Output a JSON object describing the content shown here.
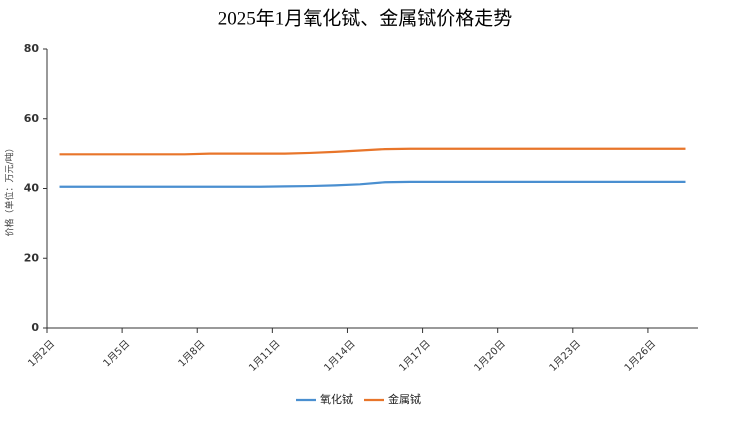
{
  "chart_data": {
    "type": "line",
    "title": "2025年1月氧化铽、金属铽价格走势",
    "y_label": "价格（单位：万元/吨）",
    "categories": [
      "1月2日",
      null,
      null,
      "1月5日",
      null,
      null,
      "1月8日",
      null,
      null,
      "1月11日",
      null,
      null,
      "1月14日",
      null,
      null,
      "1月17日",
      null,
      null,
      "1月20日",
      null,
      null,
      "1月23日",
      null,
      null,
      "1月26日",
      null
    ],
    "series": [
      {
        "name": "氧化铽",
        "color": "#4a8fd0",
        "values": [
          40.5,
          40.5,
          40.5,
          40.5,
          40.5,
          40.5,
          40.5,
          40.5,
          40.5,
          40.6,
          40.7,
          40.9,
          41.2,
          41.8,
          41.9,
          41.9,
          41.9,
          41.9,
          41.9,
          41.9,
          41.9,
          41.9,
          41.9,
          41.9,
          41.9,
          41.9
        ]
      },
      {
        "name": "金属铽",
        "color": "#e8752a",
        "values": [
          49.8,
          49.8,
          49.8,
          49.8,
          49.8,
          49.8,
          50,
          50,
          50,
          50,
          50.2,
          50.5,
          50.9,
          51.3,
          51.4,
          51.4,
          51.4,
          51.4,
          51.4,
          51.4,
          51.4,
          51.4,
          51.4,
          51.4,
          51.4,
          51.4
        ]
      }
    ],
    "ylim": [
      0,
      80
    ],
    "yticks": [
      0,
      20,
      40,
      60,
      80
    ],
    "grid": false,
    "legend": "bottom"
  }
}
